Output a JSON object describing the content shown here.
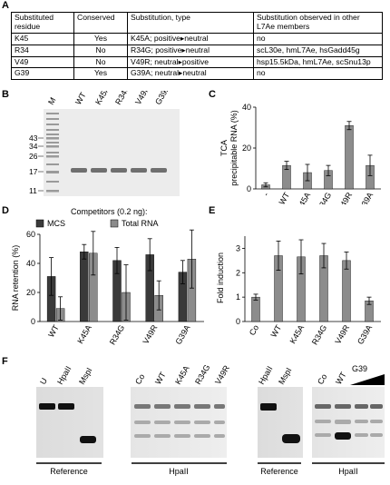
{
  "panels": {
    "A": "A",
    "B": "B",
    "C": "C",
    "D": "D",
    "E": "E",
    "F": "F"
  },
  "table": {
    "headers": [
      "Substituted residue",
      "Conserved",
      "Substitution, type",
      "Substitution observed in other L7Ae members"
    ],
    "rows": [
      {
        "residue": "K45",
        "conserved": "Yes",
        "substitution": "K45A;",
        "type_from": "positive",
        "type_to": "neutral",
        "observed": "no"
      },
      {
        "residue": "R34",
        "conserved": "No",
        "substitution": "R34G;",
        "type_from": "positive",
        "type_to": "neutral",
        "observed": "scL30e, hmL7Ae, hsGadd45g"
      },
      {
        "residue": "V49",
        "conserved": "No",
        "substitution": "V49R;",
        "type_from": "neutral",
        "type_to": "positive",
        "observed": "hsp15.5kDa, hmL7Ae, scSnu13p"
      },
      {
        "residue": "G39",
        "conserved": "Yes",
        "substitution": "G39A;",
        "type_from": "neutral",
        "type_to": "neutral",
        "observed": "no"
      }
    ],
    "arrow_glyph": "▸"
  },
  "gel_b": {
    "lanes": [
      "M",
      "WT",
      "K45A",
      "R34G",
      "V49R",
      "G39A"
    ],
    "markers": [
      "43",
      "34",
      "26",
      "17",
      "11"
    ]
  },
  "chart_data": [
    {
      "id": "C",
      "type": "bar",
      "categories": [
        "-",
        "WT",
        "K45A",
        "R34G",
        "V49R",
        "G39A"
      ],
      "values": [
        2,
        11.5,
        8,
        9,
        31,
        11.5
      ],
      "errors": [
        1,
        2,
        4,
        2.5,
        2,
        5
      ],
      "ylabel_lines": [
        "TCA",
        "precipitable RNA (%)"
      ],
      "yticks": [
        0,
        20,
        40
      ],
      "ylim": [
        0,
        40
      ],
      "grid": false
    },
    {
      "id": "D",
      "type": "bar",
      "categories": [
        "WT",
        "K45A",
        "R34G",
        "V49R",
        "G39A"
      ],
      "legend_title": "Competitors (0.2 ng):",
      "series": [
        {
          "name": "MCS",
          "values": [
            31,
            48,
            42,
            46,
            34
          ],
          "errors": [
            13,
            5,
            9,
            11,
            8
          ],
          "color": "#3a3a3a"
        },
        {
          "name": "Total RNA",
          "values": [
            9,
            47,
            20,
            18,
            43
          ],
          "errors": [
            8,
            15,
            19,
            10,
            20
          ],
          "color": "#8c8c8c"
        }
      ],
      "ylabel": "RNA retention (%)",
      "yticks": [
        0,
        20,
        40,
        60
      ],
      "ylim": [
        0,
        60
      ],
      "legend": "top"
    },
    {
      "id": "E",
      "type": "bar",
      "categories": [
        "Co",
        "WT",
        "K45A",
        "R34G",
        "V49R",
        "G39A"
      ],
      "values": [
        1.0,
        2.7,
        2.65,
        2.7,
        2.5,
        0.85
      ],
      "errors": [
        0.12,
        0.6,
        0.7,
        0.5,
        0.35,
        0.15
      ],
      "ylabel": "Fold induction",
      "yticks": [
        0,
        1,
        2,
        3
      ],
      "ylim": [
        0,
        3.5
      ]
    }
  ],
  "gel_f1": {
    "lanes": [
      "U",
      "HpaII",
      "MspI",
      "Co",
      "WT",
      "K45A",
      "R34G",
      "V49R"
    ],
    "group_reference": "Reference",
    "group_hpaii": "HpaII"
  },
  "gel_f2": {
    "lanes": [
      "HpaII",
      "MspI",
      "Co",
      "WT"
    ],
    "gradient_label": "G39",
    "group_reference": "Reference",
    "group_hpaii": "HpaII"
  }
}
